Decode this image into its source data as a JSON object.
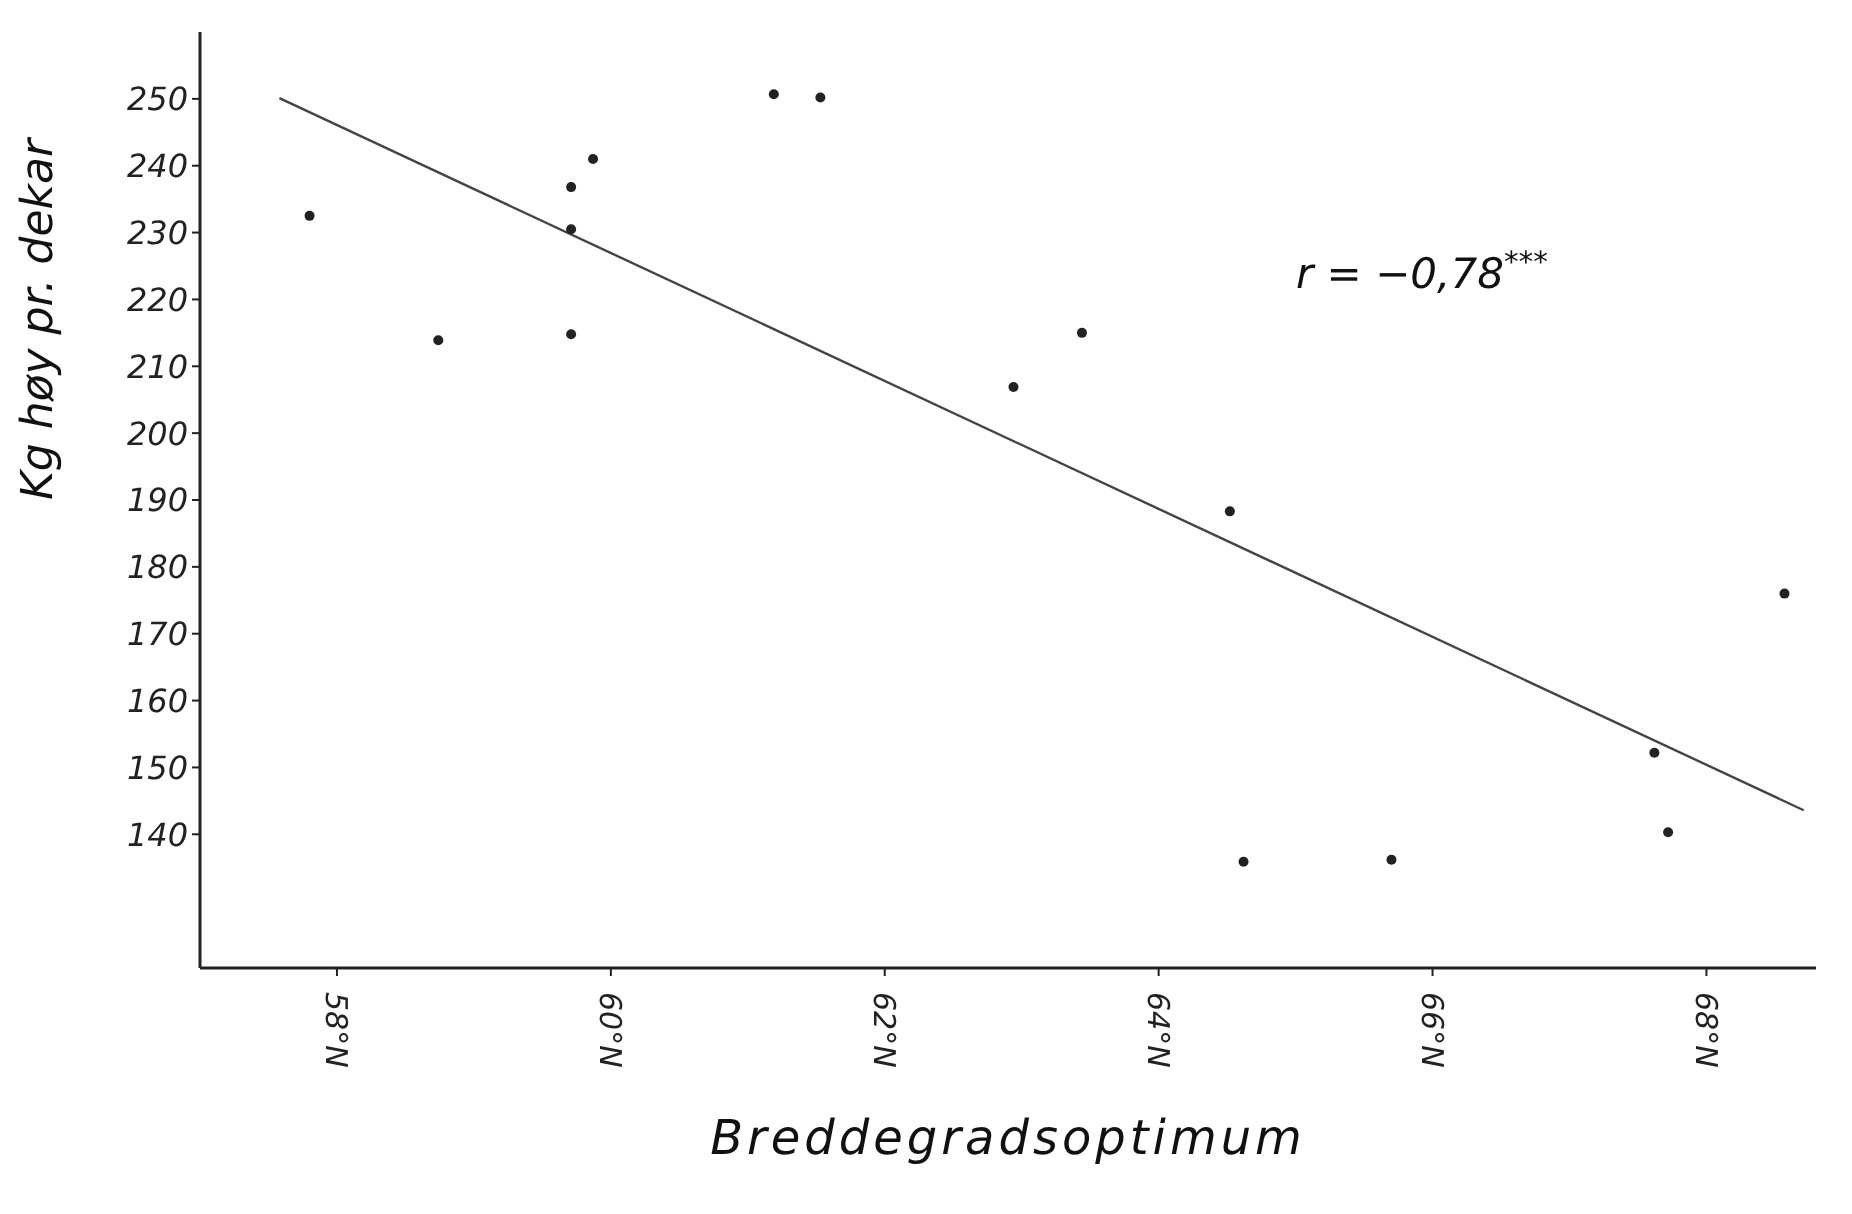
{
  "chart_data": {
    "type": "scatter",
    "xlabel": "Breddegradsoptimum",
    "ylabel": "Kg høy pr. dekar",
    "xlim": [
      57,
      68.8
    ],
    "ylim": [
      120,
      260
    ],
    "xticks": [
      {
        "value": 58,
        "label": "58°N"
      },
      {
        "value": 60,
        "label": "60°N"
      },
      {
        "value": 62,
        "label": "62°N"
      },
      {
        "value": 64,
        "label": "64°N"
      },
      {
        "value": 66,
        "label": "66°N"
      },
      {
        "value": 68,
        "label": "68°N"
      }
    ],
    "yticks": [
      140,
      150,
      160,
      170,
      180,
      190,
      200,
      210,
      220,
      230,
      240,
      250
    ],
    "grid": false,
    "legend": false,
    "annotations": [
      "r =  −0,78$^{***}$"
    ],
    "series": [
      {
        "type": "scatter",
        "color": "#222222",
        "marker": "circle",
        "x": [
          57.8,
          58.74,
          59.71,
          59.87,
          59.71,
          59.71,
          61.19,
          61.53,
          63.44,
          62.94,
          64.52,
          68.57,
          67.62,
          67.72,
          64.62,
          65.7
        ],
        "values": [
          232.5,
          213.9,
          236.8,
          241,
          230.5,
          214.8,
          250.7,
          250.2,
          215,
          206.9,
          188.3,
          176,
          152.2,
          140.3,
          135.9,
          136.2
        ]
      },
      {
        "type": "line",
        "color": "#444444",
        "marker": "none",
        "line_style": "solid",
        "x": [
          57.58,
          68.71
        ],
        "values": [
          250.1,
          143.6
        ]
      }
    ]
  }
}
